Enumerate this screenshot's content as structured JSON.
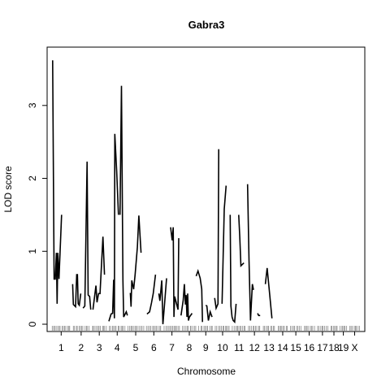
{
  "chart_data": {
    "type": "line",
    "title": "Gabra3",
    "xlabel": "Chromosome",
    "ylabel": "LOD score",
    "ylim": [
      -0.1,
      3.8
    ],
    "yticks": [
      0,
      1,
      2,
      3
    ],
    "grid": false,
    "legend": "none",
    "line_color": "#000000",
    "chromosomes": [
      {
        "label": "1",
        "start": 0,
        "end": 5.2
      },
      {
        "label": "2",
        "start": 5.7,
        "end": 10.3
      },
      {
        "label": "3",
        "start": 10.8,
        "end": 15.0
      },
      {
        "label": "4",
        "start": 15.5,
        "end": 20.0
      },
      {
        "label": "5",
        "start": 20.5,
        "end": 25.0
      },
      {
        "label": "6",
        "start": 25.5,
        "end": 29.8
      },
      {
        "label": "7",
        "start": 30.3,
        "end": 34.8
      },
      {
        "label": "8",
        "start": 35.3,
        "end": 39.2
      },
      {
        "label": "9",
        "start": 39.7,
        "end": 43.7
      },
      {
        "label": "10",
        "start": 44.2,
        "end": 48.3
      },
      {
        "label": "11",
        "start": 48.8,
        "end": 52.6
      },
      {
        "label": "12",
        "start": 53.1,
        "end": 56.6
      },
      {
        "label": "13",
        "start": 57.1,
        "end": 60.5
      },
      {
        "label": "14",
        "start": 61.0,
        "end": 64.0
      },
      {
        "label": "15",
        "start": 64.5,
        "end": 67.6
      },
      {
        "label": "16",
        "start": 68.1,
        "end": 71.2
      },
      {
        "label": "17",
        "start": 71.7,
        "end": 74.8
      },
      {
        "label": "18",
        "start": 75.3,
        "end": 77.4
      },
      {
        "label": "19",
        "start": 77.9,
        "end": 79.9
      },
      {
        "label": "X",
        "start": 80.4,
        "end": 83.5
      }
    ],
    "series": [
      {
        "values": [
          [
            0.3,
            3.62
          ],
          [
            0.7,
            0.62
          ],
          [
            1.0,
            0.62
          ],
          [
            1.3,
            0.98
          ],
          [
            1.5,
            0.28
          ],
          [
            1.7,
            0.98
          ],
          [
            2.0,
            0.62
          ],
          [
            2.7,
            1.5
          ]
        ]
      },
      {
        "values": [
          [
            5.7,
            0.55
          ],
          [
            5.9,
            0.27
          ],
          [
            6.5,
            0.24
          ],
          [
            6.8,
            0.68
          ],
          [
            7.0,
            0.68
          ],
          [
            7.2,
            0.28
          ],
          [
            7.5,
            0.26
          ],
          [
            7.9,
            0.42
          ]
        ]
      },
      {
        "values": [
          [
            8.5,
            0.22
          ],
          [
            9.0,
            0.25
          ],
          [
            9.6,
            2.23
          ],
          [
            9.9,
            0.4
          ],
          [
            10.3,
            0.38
          ],
          [
            10.6,
            0.2
          ]
        ]
      },
      {
        "values": [
          [
            11.2,
            0.2
          ],
          [
            12.0,
            0.53
          ],
          [
            12.3,
            0.3
          ],
          [
            12.7,
            0.42
          ],
          [
            13.1,
            0.42
          ],
          [
            13.9,
            1.2
          ],
          [
            14.3,
            0.68
          ]
        ]
      },
      {
        "values": [
          [
            15.5,
            0.04
          ],
          [
            16.1,
            0.14
          ],
          [
            16.5,
            0.15
          ],
          [
            16.8,
            0.61
          ],
          [
            17.0,
            0.08
          ],
          [
            17.1,
            2.61
          ],
          [
            17.6,
            2.1
          ],
          [
            18.1,
            1.5
          ]
        ]
      },
      {
        "values": [
          [
            18.5,
            1.5
          ],
          [
            18.9,
            3.27
          ],
          [
            19.3,
            0.6
          ],
          [
            19.5,
            0.1
          ],
          [
            20.2,
            0.17
          ],
          [
            20.5,
            0.12
          ]
        ]
      },
      {
        "values": [
          [
            21.3,
            0.43
          ],
          [
            21.5,
            0.24
          ],
          [
            21.7,
            0.6
          ],
          [
            22.2,
            0.48
          ],
          [
            22.6,
            0.68
          ],
          [
            23.2,
            1.06
          ],
          [
            23.6,
            1.49
          ],
          [
            24.2,
            0.98
          ]
        ]
      },
      {
        "values": [
          [
            25.8,
            0.14
          ],
          [
            26.5,
            0.17
          ],
          [
            27.0,
            0.29
          ],
          [
            27.5,
            0.42
          ],
          [
            28.1,
            0.68
          ]
        ]
      },
      {
        "values": [
          [
            29.0,
            0.42
          ],
          [
            29.3,
            0.32
          ],
          [
            29.8,
            0.6
          ],
          [
            30.1,
            0.0
          ],
          [
            30.6,
            0.3
          ],
          [
            31.1,
            0.63
          ]
        ]
      },
      {
        "values": [
          [
            32.2,
            1.33
          ],
          [
            32.6,
            1.15
          ],
          [
            32.9,
            1.33
          ],
          [
            33.1,
            0.1
          ],
          [
            33.3,
            0.38
          ],
          [
            34.2,
            0.2
          ],
          [
            34.4,
            1.18
          ]
        ]
      },
      {
        "values": [
          [
            35.0,
            0.12
          ],
          [
            35.6,
            0.33
          ],
          [
            35.9,
            0.55
          ],
          [
            36.2,
            0.27
          ],
          [
            36.4,
            0.4
          ],
          [
            36.6,
            0.1
          ],
          [
            36.8,
            0.42
          ],
          [
            37.0,
            0.05
          ],
          [
            37.3,
            0.1
          ],
          [
            38.0,
            0.15
          ]
        ]
      },
      {
        "values": [
          [
            39.1,
            0.66
          ],
          [
            39.6,
            0.73
          ],
          [
            40.2,
            0.63
          ],
          [
            40.6,
            0.48
          ],
          [
            40.8,
            0.03
          ]
        ]
      },
      {
        "values": [
          [
            41.7,
            0.26
          ],
          [
            42.0,
            0.25
          ],
          [
            42.4,
            0.05
          ],
          [
            42.9,
            0.17
          ],
          [
            43.4,
            0.1
          ]
        ]
      },
      {
        "values": [
          [
            44.1,
            0.36
          ],
          [
            44.5,
            0.22
          ],
          [
            45.0,
            0.28
          ],
          [
            45.2,
            2.4
          ]
        ]
      },
      {
        "values": [
          [
            46.1,
            0.28
          ],
          [
            46.7,
            1.58
          ],
          [
            47.2,
            1.9
          ]
        ]
      },
      {
        "values": [
          [
            48.3,
            1.5
          ],
          [
            48.5,
            0.25
          ],
          [
            48.8,
            0.1
          ],
          [
            49.1,
            0.05
          ],
          [
            49.5,
            0.03
          ],
          [
            49.9,
            0.28
          ]
        ]
      },
      {
        "values": [
          [
            50.6,
            1.5
          ],
          [
            50.9,
            1.2
          ],
          [
            51.2,
            0.8
          ],
          [
            52.0,
            0.84
          ]
        ]
      },
      {
        "values": [
          [
            53.0,
            1.92
          ],
          [
            53.4,
            0.87
          ],
          [
            53.8,
            0.05
          ],
          [
            54.3,
            0.55
          ],
          [
            54.6,
            0.47
          ]
        ]
      },
      {
        "values": [
          [
            55.7,
            0.15
          ],
          [
            56.0,
            0.12
          ],
          [
            56.4,
            0.12
          ]
        ]
      },
      {
        "values": [
          [
            57.8,
            0.55
          ],
          [
            58.3,
            0.77
          ],
          [
            59.0,
            0.4
          ],
          [
            59.6,
            0.08
          ]
        ]
      }
    ]
  }
}
